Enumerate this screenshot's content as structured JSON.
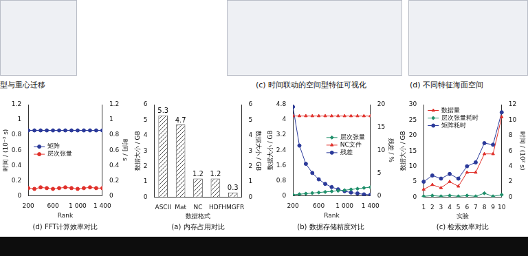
{
  "panels": [
    "型与重心迁移",
    "(c) 时间联动的空间型特征可视化",
    "(d) 不同特征海面空间"
  ],
  "chart_data": [
    {
      "type": "line",
      "title": "(d) FFT计算效率对比",
      "x_label": "Rank",
      "y_label": "时间 / (10⁻³ s)",
      "y2_label": "时间 / s",
      "x": [
        200,
        300,
        400,
        500,
        600,
        700,
        800,
        900,
        1000,
        1100,
        1200,
        1300,
        1400
      ],
      "xlim": [
        200,
        1400
      ],
      "xticks": [
        200,
        600,
        {
          "value": 1000,
          "label": "1 000"
        },
        {
          "value": 1400,
          "label": "1 400"
        }
      ],
      "ylim": [
        0,
        1.2
      ],
      "yticks": [
        0,
        0.2,
        0.4,
        0.6,
        0.8,
        1.0,
        1.2
      ],
      "y2lim": [
        0,
        1.2
      ],
      "y2ticks": [
        0,
        0.2,
        0.4,
        0.6,
        0.8,
        1.0,
        1.2
      ],
      "grid": false,
      "legend": "left",
      "series": [
        {
          "name": "矩阵",
          "color": "#2b3a9a",
          "marker": "circle",
          "values": [
            0.86,
            0.86,
            0.86,
            0.86,
            0.86,
            0.86,
            0.86,
            0.86,
            0.86,
            0.86,
            0.86,
            0.86,
            0.86
          ]
        },
        {
          "name": "层次张量",
          "color": "#e0302a",
          "marker": "circle",
          "values": [
            0.1,
            0.09,
            0.11,
            0.1,
            0.09,
            0.1,
            0.11,
            0.1,
            0.09,
            0.1,
            0.11,
            0.1,
            0.1
          ]
        }
      ]
    },
    {
      "type": "bar",
      "title": "(a) 内存占用对比",
      "x_label": "数据格式",
      "y_label": "数据大小 / GB",
      "y2_label": "数据大小 / GB",
      "categories": [
        "ASCII",
        "Mat",
        "NC",
        "HDF",
        "HMGFR"
      ],
      "values": [
        5.3,
        4.7,
        1.2,
        1.2,
        0.3
      ],
      "color": "#555555",
      "ylim": [
        0,
        6
      ],
      "yticks": [
        0,
        1,
        2,
        3,
        4,
        5,
        6
      ],
      "y2lim": [
        0,
        6
      ],
      "y2ticks": [
        0,
        1,
        2,
        3,
        4,
        5,
        6
      ],
      "grid": false,
      "data_labels": true
    },
    {
      "type": "line",
      "title": "(b) 数据存储精度对比",
      "x_label": "Rank",
      "y_label": "数据大小 / GB",
      "y2_label": "残差 / %",
      "x": [
        200,
        300,
        400,
        500,
        600,
        700,
        800,
        900,
        1000,
        1100,
        1200,
        1300,
        1400
      ],
      "xlim": [
        200,
        1400
      ],
      "xticks": [
        200,
        600,
        {
          "value": 1000,
          "label": "1 000"
        },
        {
          "value": 1400,
          "label": "1 400"
        }
      ],
      "ylim": [
        0,
        4.8
      ],
      "yticks": [
        0,
        0.8,
        1.6,
        2.4,
        3.2,
        4.0,
        4.8
      ],
      "y2lim": [
        0,
        20
      ],
      "y2ticks": [
        0,
        5,
        10,
        15,
        20
      ],
      "grid": false,
      "legend": "right",
      "series": [
        {
          "name": "层次张量",
          "color": "#1f8f6a",
          "marker": "rectRot",
          "values": [
            0.05,
            0.08,
            0.11,
            0.14,
            0.17,
            0.2,
            0.23,
            0.26,
            0.29,
            0.33,
            0.37,
            0.41,
            0.45
          ]
        },
        {
          "name": "NC文件",
          "color": "#e0302a",
          "marker": "triangle",
          "values": [
            4.2,
            4.2,
            4.2,
            4.2,
            4.2,
            4.2,
            4.2,
            4.2,
            4.2,
            4.2,
            4.2,
            4.2,
            4.2
          ]
        },
        {
          "name": "残差",
          "color": "#2b3a9a",
          "marker": "circle",
          "axis": "y2",
          "values": [
            19.5,
            11,
            7,
            5,
            3.6,
            2.6,
            1.9,
            1.4,
            1,
            0.7,
            0.5,
            0.3,
            0.2
          ]
        }
      ]
    },
    {
      "type": "line",
      "title": "(c) 检索效率对比",
      "x_label": "实验",
      "y_label": "数据大小 / GB",
      "y2_label": "时间 / (10² s)",
      "categories": [
        "1",
        "2",
        "3",
        "4",
        "5",
        "6",
        "7",
        "8",
        "9",
        "10"
      ],
      "ylim": [
        0,
        30
      ],
      "yticks": [
        0,
        5,
        10,
        15,
        20,
        25,
        30
      ],
      "y2lim": [
        0,
        12
      ],
      "y2ticks": [
        0,
        2,
        4,
        6,
        8,
        10,
        12
      ],
      "grid": false,
      "legend": "top-left",
      "series": [
        {
          "name": "数据量",
          "color": "#e0302a",
          "marker": "triangle",
          "values": [
            2.5,
            4,
            3,
            5,
            3.5,
            8,
            8,
            14,
            14,
            26
          ]
        },
        {
          "name": "层次张量耗时",
          "color": "#1f8f6a",
          "marker": "rectRot",
          "axis": "y2",
          "values": [
            0.1,
            0.2,
            0.1,
            0.2,
            0.1,
            0.2,
            0.1,
            0.5,
            0.1,
            0.3
          ]
        },
        {
          "name": "矩阵耗时",
          "color": "#2b3a9a",
          "marker": "circle",
          "axis": "y2",
          "values": [
            2,
            2.8,
            2.4,
            3,
            2.4,
            4,
            4.5,
            7,
            6.8,
            11
          ]
        }
      ]
    }
  ]
}
